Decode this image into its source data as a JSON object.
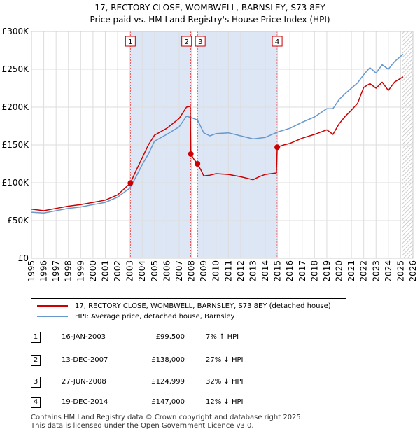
{
  "title_line1": "17, RECTORY CLOSE, WOMBWELL, BARNSLEY, S73 8EY",
  "title_line2": "Price paid vs. HM Land Registry's House Price Index (HPI)",
  "legend": {
    "property": "17, RECTORY CLOSE, WOMBWELL, BARNSLEY, S73 8EY (detached house)",
    "hpi": "HPI: Average price, detached house, Barnsley"
  },
  "transactions": [
    {
      "num": "1",
      "date": "16-JAN-2003",
      "price": "£99,500",
      "hpi": "7% ↑ HPI"
    },
    {
      "num": "2",
      "date": "13-DEC-2007",
      "price": "£138,000",
      "hpi": "27% ↓ HPI"
    },
    {
      "num": "3",
      "date": "27-JUN-2008",
      "price": "£124,999",
      "hpi": "32% ↓ HPI"
    },
    {
      "num": "4",
      "date": "19-DEC-2014",
      "price": "£147,000",
      "hpi": "12% ↓ HPI"
    }
  ],
  "footer_line1": "Contains HM Land Registry data © Crown copyright and database right 2025.",
  "footer_line2": "This data is licensed under the Open Government Licence v3.0.",
  "colors": {
    "property": "#cc0000",
    "hpi": "#6699cc",
    "shade": "#dde6f5",
    "marker_line": "#ee3333"
  },
  "chart_data": {
    "type": "line",
    "title": "17, RECTORY CLOSE, WOMBWELL, BARNSLEY, S73 8EY",
    "subtitle": "Price paid vs. HM Land Registry's House Price Index (HPI)",
    "xlabel": "",
    "ylabel": "",
    "xlim": [
      1995,
      2026
    ],
    "ylim": [
      0,
      300000
    ],
    "x_ticks": [
      1995,
      1996,
      1997,
      1998,
      1999,
      2000,
      2001,
      2002,
      2003,
      2004,
      2005,
      2006,
      2007,
      2008,
      2009,
      2010,
      2011,
      2012,
      2013,
      2014,
      2015,
      2016,
      2017,
      2018,
      2019,
      2020,
      2021,
      2022,
      2023,
      2024,
      2025,
      2026
    ],
    "y_ticks": [
      {
        "value": 0,
        "label": "£0"
      },
      {
        "value": 50000,
        "label": "£50K"
      },
      {
        "value": 100000,
        "label": "£100K"
      },
      {
        "value": 150000,
        "label": "£150K"
      },
      {
        "value": 200000,
        "label": "£200K"
      },
      {
        "value": 250000,
        "label": "£250K"
      },
      {
        "value": 300000,
        "label": "£300K"
      }
    ],
    "grid": true,
    "shaded_ranges": [
      [
        2003.04,
        2007.95
      ],
      [
        2008.49,
        2014.97
      ]
    ],
    "future_hatch_from": 2025.1,
    "markers": [
      {
        "label": "1",
        "x": 2003.04,
        "y": 99500
      },
      {
        "label": "2",
        "x": 2007.95,
        "y": 138000
      },
      {
        "label": "3",
        "x": 2008.49,
        "y": 124999
      },
      {
        "label": "4",
        "x": 2014.97,
        "y": 147000
      }
    ],
    "series": [
      {
        "name": "17, RECTORY CLOSE, WOMBWELL, BARNSLEY, S73 8EY (detached house)",
        "x": [
          1995,
          1996,
          1997,
          1998,
          1999,
          2000,
          2001,
          2002,
          2003.04,
          2003.5,
          2004,
          2004.5,
          2005,
          2006,
          2007,
          2007.6,
          2007.9,
          2007.95,
          2008.2,
          2008.49,
          2008.8,
          2009,
          2009.5,
          2010,
          2011,
          2012,
          2013,
          2013.5,
          2014,
          2014.9,
          2014.97,
          2015.5,
          2016,
          2017,
          2018,
          2019,
          2019.5,
          2020,
          2020.5,
          2021,
          2021.5,
          2022,
          2022.5,
          2023,
          2023.5,
          2024,
          2024.5,
          2025.2
        ],
        "values": [
          65000,
          63000,
          66000,
          69000,
          71000,
          74000,
          77000,
          84000,
          99500,
          116000,
          133000,
          150000,
          163000,
          172000,
          185000,
          200000,
          201000,
          138000,
          131000,
          124999,
          116000,
          109000,
          110000,
          112000,
          111000,
          108000,
          104000,
          108000,
          111000,
          113000,
          147000,
          150000,
          152000,
          159000,
          164000,
          170000,
          164000,
          178000,
          188000,
          196000,
          205000,
          226000,
          231000,
          225000,
          233000,
          222000,
          233000,
          240000
        ]
      },
      {
        "name": "HPI: Average price, detached house, Barnsley",
        "x": [
          1995,
          1996,
          1997,
          1998,
          1999,
          2000,
          2001,
          2002,
          2003,
          2003.5,
          2004,
          2004.5,
          2005,
          2006,
          2007,
          2007.6,
          2008,
          2008.5,
          2009,
          2009.5,
          2010,
          2011,
          2012,
          2013,
          2014,
          2015,
          2016,
          2017,
          2018,
          2019,
          2019.5,
          2020,
          2020.5,
          2021,
          2021.5,
          2022,
          2022.5,
          2023,
          2023.5,
          2024,
          2024.5,
          2025.2
        ],
        "values": [
          61000,
          60000,
          63000,
          66000,
          68000,
          71000,
          74000,
          81000,
          93000,
          108000,
          124000,
          138000,
          155000,
          164000,
          174000,
          188000,
          186000,
          183000,
          166000,
          162000,
          165000,
          166000,
          162000,
          158000,
          160000,
          167000,
          172000,
          180000,
          187000,
          198000,
          198000,
          210000,
          218000,
          225000,
          232000,
          243000,
          252000,
          245000,
          256000,
          250000,
          260000,
          270000
        ]
      }
    ]
  }
}
